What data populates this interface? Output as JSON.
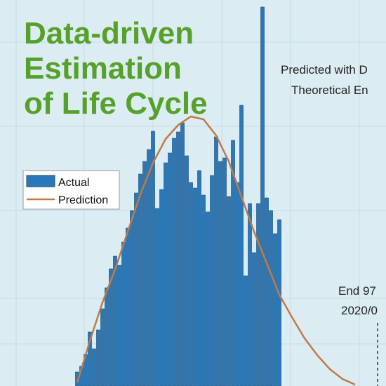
{
  "chart_data": {
    "type": "bar",
    "title_lines": [
      "Data-driven",
      "Estimation",
      "of Life Cycle"
    ],
    "annotations": [
      "Predicted with D",
      "Theoretical En",
      "End 97",
      "2020/0"
    ],
    "xlim": [
      -18.33,
      73.33
    ],
    "ylim": [
      0,
      550
    ],
    "series": [
      {
        "name": "Actual",
        "type": "bar",
        "color": "#2a78b8",
        "x": [
          0,
          1,
          2,
          3,
          4,
          5,
          6,
          7,
          8,
          9,
          10,
          11,
          12,
          13,
          14,
          15,
          16,
          17,
          18,
          19,
          20,
          21,
          22,
          23,
          24,
          25,
          26,
          27,
          28,
          29,
          30,
          31,
          32,
          33,
          34,
          35,
          36,
          37,
          38,
          39,
          40,
          41,
          42,
          43,
          44,
          45,
          46,
          47,
          48
        ],
        "values": [
          20,
          28,
          45,
          77,
          53,
          80,
          110,
          140,
          167,
          185,
          172,
          205,
          225,
          250,
          275,
          302,
          320,
          337,
          363,
          253,
          280,
          318,
          332,
          353,
          362,
          375,
          328,
          290,
          282,
          307,
          272,
          248,
          300,
          355,
          320,
          325,
          270,
          350,
          290,
          400,
          157,
          260,
          190,
          260,
          540,
          268,
          250,
          217,
          237
        ]
      },
      {
        "name": "Prediction",
        "type": "line",
        "color": "#c07a4a",
        "x": [
          0,
          3,
          6,
          9,
          12,
          15,
          18,
          21,
          24,
          27,
          30,
          33,
          36,
          39,
          42,
          45,
          48,
          51,
          54,
          57,
          60,
          63,
          66
        ],
        "values": [
          5,
          64,
          119,
          166,
          220,
          273,
          318,
          352,
          372,
          384,
          380,
          357,
          320,
          270,
          220,
          175,
          130,
          98,
          68,
          44,
          24,
          10,
          2
        ]
      }
    ]
  }
}
